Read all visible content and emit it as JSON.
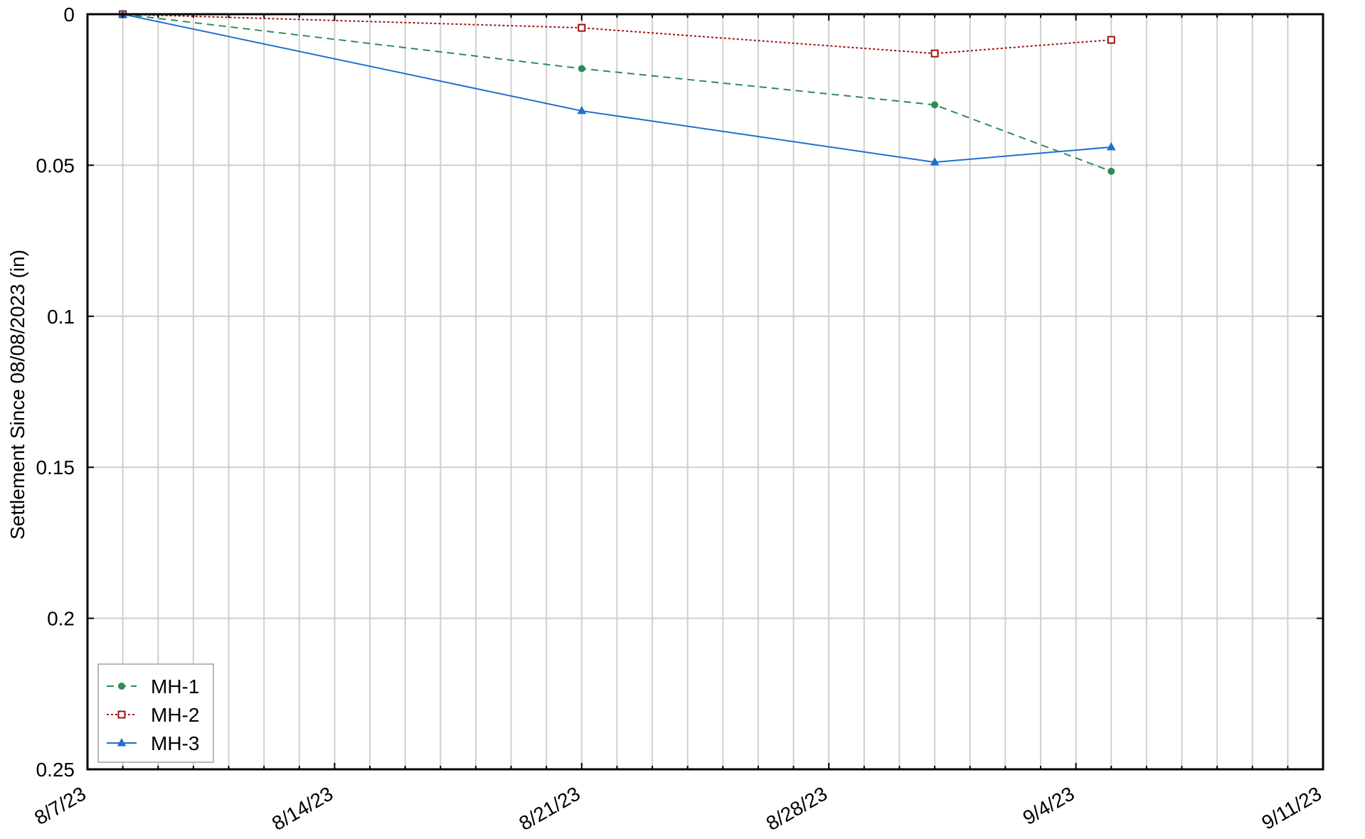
{
  "chart_data": {
    "type": "line",
    "title": "",
    "xlabel": "",
    "ylabel": "Settlement Since 08/08/2023 (in)",
    "xlim": [
      "2023-08-07",
      "2023-09-11"
    ],
    "ylim": [
      0,
      0.25
    ],
    "y_inverted": true,
    "x_ticks": [
      "8/7/23",
      "8/14/23",
      "8/21/23",
      "8/28/23",
      "9/4/23",
      "9/11/23"
    ],
    "y_ticks": [
      "0",
      "0.05",
      "0.1",
      "0.15",
      "0.2",
      "0.25"
    ],
    "y_tick_values": [
      0,
      0.05,
      0.1,
      0.15,
      0.2,
      0.25
    ],
    "grid": true,
    "legend_position": "bottom-left",
    "series": [
      {
        "name": "MH-1",
        "color": "#2e8b57",
        "line_style": "dashed",
        "marker": "dot",
        "x": [
          "2023-08-08",
          "2023-08-21",
          "2023-08-31",
          "2023-09-05"
        ],
        "y": [
          0,
          0.018,
          0.03,
          0.052
        ]
      },
      {
        "name": "MH-2",
        "color": "#a01010",
        "line_style": "dotted",
        "marker": "square",
        "x": [
          "2023-08-08",
          "2023-08-21",
          "2023-08-31",
          "2023-09-05"
        ],
        "y": [
          0,
          0.0045,
          0.013,
          0.0085
        ]
      },
      {
        "name": "MH-3",
        "color": "#1f6fcf",
        "line_style": "solid",
        "marker": "triangle",
        "x": [
          "2023-08-08",
          "2023-08-21",
          "2023-08-31",
          "2023-09-05"
        ],
        "y": [
          0,
          0.032,
          0.049,
          0.044
        ]
      }
    ]
  }
}
